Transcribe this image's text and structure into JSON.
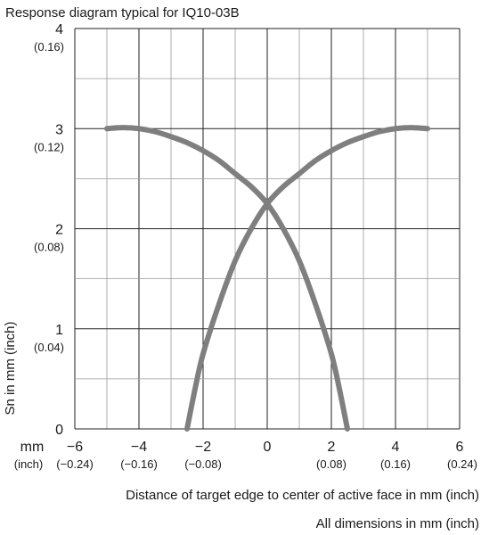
{
  "chart_data": {
    "type": "line",
    "title": "Response diagram typical for IQ10-03B",
    "ylabel": "Sn in mm (inch)",
    "xlabel": "Distance of target edge to center of active face in mm (inch)",
    "footnote": "All dimensions in mm (inch)",
    "x_unit_label": "mm",
    "x_inch_unit_label": "(inch)",
    "xlim": [
      -6,
      6
    ],
    "ylim": [
      0,
      4
    ],
    "grid": true,
    "x_ticks": [
      {
        "value": -6,
        "label": "−6",
        "inch": "(−0.24)"
      },
      {
        "value": -4,
        "label": "−4",
        "inch": "(−0.16)"
      },
      {
        "value": -2,
        "label": "−2",
        "inch": "(−0.08)"
      },
      {
        "value": 0,
        "label": "0",
        "inch": ""
      },
      {
        "value": 2,
        "label": "2",
        "inch": "(0.08)"
      },
      {
        "value": 4,
        "label": "4",
        "inch": "(0.16)"
      },
      {
        "value": 6,
        "label": "6",
        "inch": "(0.24)"
      }
    ],
    "y_ticks": [
      {
        "value": 0,
        "label": "0",
        "inch": ""
      },
      {
        "value": 1,
        "label": "1",
        "inch": "(0.04)"
      },
      {
        "value": 2,
        "label": "2",
        "inch": "(0.08)"
      },
      {
        "value": 3,
        "label": "3",
        "inch": "(0.12)"
      },
      {
        "value": 4,
        "label": "4",
        "inch": "(0.16)"
      }
    ],
    "series": [
      {
        "color": "#7f7f7f",
        "x": [
          -5,
          -4.5,
          -4,
          -3.5,
          -3,
          -2.5,
          -2,
          -1.5,
          -1,
          -0.5,
          0,
          0.5,
          1,
          1.5,
          2,
          2.25,
          2.5
        ],
        "y": [
          3.0,
          3.01,
          3.0,
          2.97,
          2.92,
          2.86,
          2.78,
          2.68,
          2.55,
          2.42,
          2.25,
          2.0,
          1.68,
          1.25,
          0.75,
          0.4,
          0
        ]
      },
      {
        "color": "#7f7f7f",
        "x": [
          -2.5,
          -2.25,
          -2,
          -1.5,
          -1,
          -0.5,
          0,
          0.5,
          1,
          1.5,
          2,
          2.5,
          3,
          3.5,
          4,
          4.5,
          5
        ],
        "y": [
          0,
          0.4,
          0.75,
          1.25,
          1.68,
          2.0,
          2.25,
          2.42,
          2.55,
          2.68,
          2.78,
          2.86,
          2.92,
          2.97,
          3.0,
          3.01,
          3.0
        ]
      }
    ]
  }
}
